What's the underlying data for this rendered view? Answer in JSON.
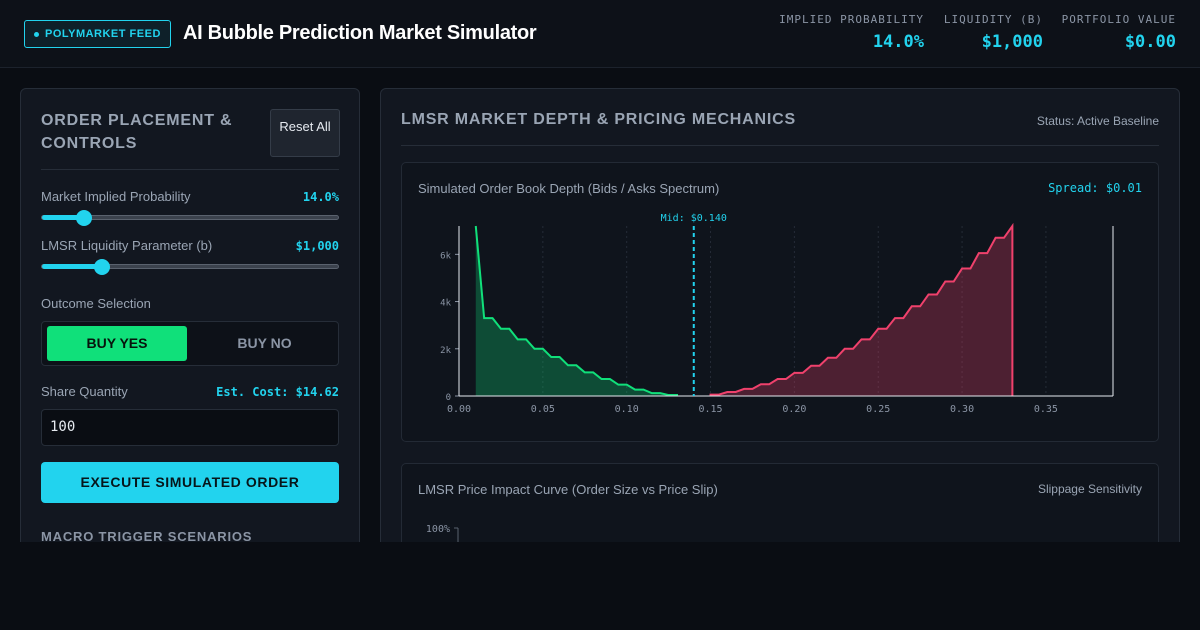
{
  "header": {
    "feed_badge": "POLYMARKET FEED",
    "title": "AI Bubble Prediction Market Simulator",
    "metrics": [
      {
        "label": "IMPLIED PROBABILITY",
        "value": "14.0%"
      },
      {
        "label": "LIQUIDITY (B)",
        "value": "$1,000"
      },
      {
        "label": "PORTFOLIO VALUE",
        "value": "$0.00"
      }
    ]
  },
  "controls": {
    "title": "ORDER PLACEMENT & CONTROLS",
    "reset_label": "Reset All",
    "probability": {
      "label": "Market Implied Probability",
      "value": "14.0%",
      "level": 0.14
    },
    "liquidity": {
      "label": "LMSR Liquidity Parameter (b)",
      "value": "$1,000",
      "level": 0.2
    },
    "outcome": {
      "label": "Outcome Selection",
      "yes": "BUY YES",
      "no": "BUY NO",
      "selected": "yes"
    },
    "quantity": {
      "label": "Share Quantity",
      "est_cost": "Est. Cost: $14.62",
      "value": "100"
    },
    "execute_label": "EXECUTE SIMULATED ORDER",
    "macro_title": "MACRO TRIGGER SCENARIOS"
  },
  "depth_panel": {
    "title": "LMSR MARKET DEPTH & PRICING MECHANICS",
    "status": "Status: Active Baseline"
  },
  "impact_panel": {
    "title": "LMSR Price Impact Curve (Order Size vs Price Slip)",
    "right_label": "Slippage Sensitivity",
    "y_tick_top": "100%"
  },
  "colors": {
    "accent": "#22d3ee",
    "bid": "#10e07a",
    "ask": "#f0416c",
    "background": "#0a0d13"
  },
  "chart_data": {
    "type": "area",
    "title": "Simulated Order Book Depth (Bids / Asks Spectrum)",
    "spread_label": "Spread: $0.01",
    "mid_label": "Mid: $0.140",
    "mid": 0.14,
    "xlim": [
      0.0,
      0.39
    ],
    "ylim": [
      0,
      7200
    ],
    "x_ticks": [
      "0.00",
      "0.05",
      "0.10",
      "0.15",
      "0.20",
      "0.25",
      "0.30",
      "0.35"
    ],
    "x_tick_values": [
      0.0,
      0.05,
      0.1,
      0.15,
      0.2,
      0.25,
      0.3,
      0.35
    ],
    "y_ticks": [
      "0",
      "2k",
      "4k",
      "6k"
    ],
    "y_tick_values": [
      0,
      2000,
      4000,
      6000
    ],
    "series": [
      {
        "name": "Bids",
        "color": "#10e07a",
        "x": [
          0.01,
          0.015,
          0.02,
          0.025,
          0.03,
          0.035,
          0.04,
          0.045,
          0.05,
          0.055,
          0.06,
          0.065,
          0.07,
          0.075,
          0.08,
          0.085,
          0.09,
          0.095,
          0.1,
          0.105,
          0.11,
          0.115,
          0.12,
          0.125,
          0.13
        ],
        "values": [
          7200,
          3300,
          3300,
          2850,
          2850,
          2400,
          2400,
          2000,
          2000,
          1650,
          1650,
          1300,
          1300,
          1000,
          1000,
          720,
          720,
          480,
          480,
          270,
          270,
          120,
          120,
          40,
          40
        ]
      },
      {
        "name": "Asks",
        "color": "#f0416c",
        "x": [
          0.15,
          0.155,
          0.16,
          0.165,
          0.17,
          0.175,
          0.18,
          0.185,
          0.19,
          0.195,
          0.2,
          0.205,
          0.21,
          0.215,
          0.22,
          0.225,
          0.23,
          0.235,
          0.24,
          0.245,
          0.25,
          0.255,
          0.26,
          0.265,
          0.27,
          0.275,
          0.28,
          0.285,
          0.29,
          0.295,
          0.3,
          0.305,
          0.31,
          0.315,
          0.32,
          0.325,
          0.33
        ],
        "values": [
          60,
          60,
          170,
          170,
          300,
          300,
          500,
          500,
          720,
          720,
          980,
          980,
          1280,
          1280,
          1620,
          1620,
          2000,
          2000,
          2400,
          2400,
          2850,
          2850,
          3300,
          3300,
          3800,
          3800,
          4300,
          4300,
          4850,
          4850,
          5400,
          5400,
          6050,
          6050,
          6700,
          6700,
          7200
        ]
      }
    ]
  }
}
